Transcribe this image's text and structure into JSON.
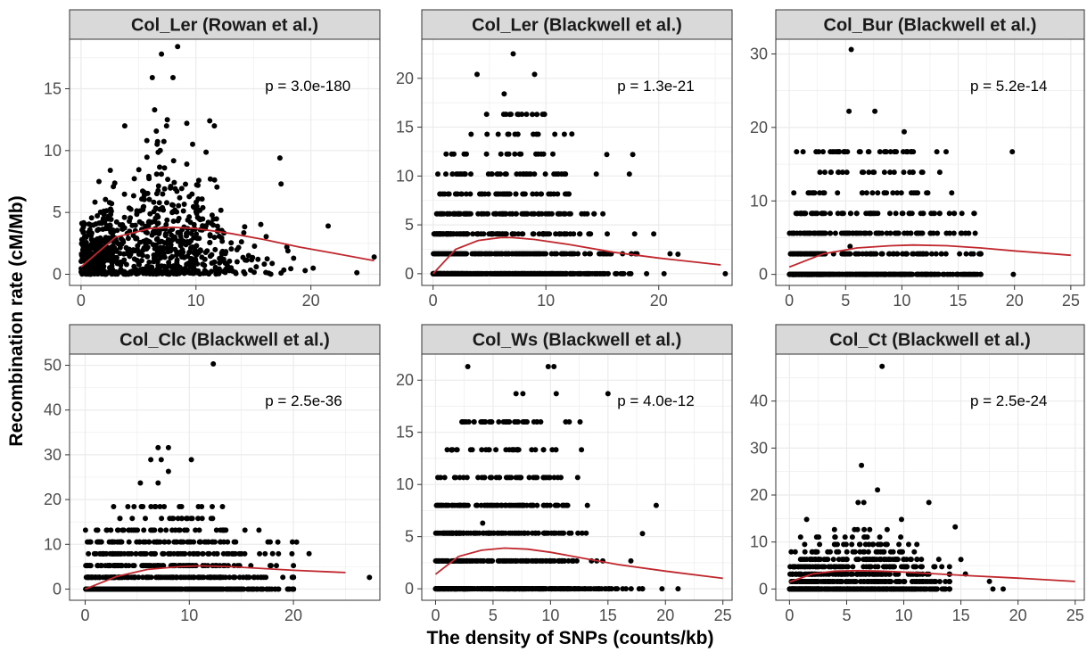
{
  "figure": {
    "ylabel": "Recombination rate (cM/Mb)",
    "xlabel": "The density of SNPs (counts/kb)"
  },
  "colors": {
    "points": "#000000",
    "curve": "#c0272d",
    "strip_fill": "#d9d9d9",
    "grid": "#ebebeb",
    "panel_border": "#333333"
  },
  "chart_data": [
    {
      "type": "scatter",
      "title": "Col_Ler (Rowan et al.)",
      "p_label": "p = 3.0e-180",
      "xlim": [
        -1,
        26
      ],
      "ylim": [
        -0.9,
        19
      ],
      "xticks": [
        0,
        10,
        20
      ],
      "yticks": [
        0,
        5,
        10,
        15
      ],
      "grid": true,
      "mode": "continuous",
      "cluster_x": 7,
      "cluster_y": 3,
      "x_max": 24,
      "n": 900,
      "points": [
        [
          8.4,
          18.4
        ],
        [
          7.0,
          17.8
        ],
        [
          8.0,
          15.9
        ],
        [
          6.2,
          15.9
        ],
        [
          6.4,
          13.3
        ],
        [
          3.8,
          12.0
        ],
        [
          9.2,
          12.2
        ],
        [
          11.2,
          12.4
        ],
        [
          11.6,
          12.0
        ],
        [
          7.5,
          12.5
        ],
        [
          17.3,
          9.4
        ],
        [
          17.4,
          7.3
        ],
        [
          21.5,
          3.9
        ],
        [
          25.5,
          1.4
        ],
        [
          20.2,
          0.5
        ],
        [
          19.5,
          0.3
        ],
        [
          18.5,
          1.3
        ],
        [
          18.0,
          1.9
        ]
      ],
      "curve": {
        "x": [
          0,
          3,
          6,
          8,
          10,
          13,
          16,
          19,
          22,
          25.5
        ],
        "y": [
          0.6,
          3.0,
          3.7,
          3.8,
          3.7,
          3.3,
          2.8,
          2.2,
          1.7,
          1.1
        ]
      }
    },
    {
      "type": "scatter",
      "title": "Col_Ler (Blackwell et al.)",
      "p_label": "p = 1.3e-21",
      "xlim": [
        -1,
        26.5
      ],
      "ylim": [
        -1.2,
        24
      ],
      "xticks": [
        0,
        10,
        20
      ],
      "yticks": [
        0,
        5,
        10,
        15,
        20
      ],
      "grid": true,
      "mode": "discrete",
      "levels": [
        0,
        2.04,
        4.08,
        6.12,
        8.16,
        10.2,
        12.24,
        14.28,
        16.32
      ],
      "cluster_x": 7.5,
      "x_max": 21,
      "n": 1200,
      "points": [
        [
          7.1,
          22.5
        ],
        [
          3.9,
          20.4
        ],
        [
          9.0,
          20.4
        ],
        [
          6.3,
          18.4
        ],
        [
          6.8,
          16.3
        ],
        [
          7.6,
          16.3
        ],
        [
          8.8,
          16.3
        ],
        [
          9.2,
          16.3
        ],
        [
          15.4,
          12.2
        ],
        [
          17.7,
          12.2
        ],
        [
          17.4,
          10.2
        ],
        [
          21.7,
          2.0
        ],
        [
          25.9,
          0.0
        ],
        [
          12.3,
          14.3
        ]
      ],
      "curve": {
        "x": [
          0,
          2,
          4,
          6,
          7,
          9,
          12,
          16,
          20,
          25.5
        ],
        "y": [
          0.0,
          2.5,
          3.4,
          3.7,
          3.7,
          3.5,
          3.0,
          2.2,
          1.6,
          0.9
        ]
      }
    },
    {
      "type": "scatter",
      "title": "Col_Bur (Blackwell et al.)",
      "p_label": "p = 5.2e-14",
      "xlim": [
        -1.2,
        26.2
      ],
      "ylim": [
        -1.5,
        32
      ],
      "xticks": [
        0,
        5,
        10,
        15,
        20,
        25
      ],
      "yticks": [
        0,
        10,
        20,
        30
      ],
      "grid": true,
      "mode": "discrete",
      "levels": [
        0,
        2.8,
        5.6,
        8.3,
        11.1,
        13.9,
        16.7
      ],
      "cluster_x": 8,
      "x_max": 17,
      "n": 800,
      "points": [
        [
          5.5,
          30.6
        ],
        [
          5.3,
          22.2
        ],
        [
          7.6,
          22.2
        ],
        [
          10.2,
          19.4
        ],
        [
          19.8,
          16.7
        ],
        [
          19.9,
          0.0
        ],
        [
          5.4,
          3.8
        ],
        [
          3.0,
          16.7
        ],
        [
          4.2,
          16.7
        ]
      ],
      "curve": {
        "x": [
          0,
          3,
          6,
          9,
          11,
          14,
          17,
          20,
          25
        ],
        "y": [
          1.0,
          2.8,
          3.6,
          3.9,
          4.0,
          3.9,
          3.6,
          3.2,
          2.6
        ]
      }
    },
    {
      "type": "scatter",
      "title": "Col_Clc (Blackwell et al.)",
      "p_label": "p = 2.5e-36",
      "xlim": [
        -1.5,
        28.3
      ],
      "ylim": [
        -2.5,
        52.5
      ],
      "xticks": [
        0,
        10,
        20
      ],
      "yticks": [
        0,
        10,
        20,
        30,
        40,
        50
      ],
      "grid": true,
      "mode": "discrete",
      "levels": [
        0,
        2.63,
        5.26,
        7.89,
        10.53,
        13.16,
        15.79,
        18.42
      ],
      "cluster_x": 9,
      "x_max": 20,
      "n": 1100,
      "points": [
        [
          12.3,
          50.3
        ],
        [
          7.0,
          31.6
        ],
        [
          8.0,
          31.6
        ],
        [
          7.3,
          28.9
        ],
        [
          8.0,
          26.3
        ],
        [
          10.2,
          28.9
        ],
        [
          6.3,
          28.9
        ],
        [
          18.0,
          7.9
        ],
        [
          18.5,
          10.5
        ],
        [
          20.3,
          10.5
        ],
        [
          21.5,
          7.9
        ],
        [
          27.3,
          2.6
        ],
        [
          5.3,
          23.7
        ],
        [
          7.0,
          23.7
        ]
      ],
      "curve": {
        "x": [
          0,
          3,
          6,
          9,
          11,
          14,
          17,
          20,
          25
        ],
        "y": [
          0.0,
          2.8,
          4.4,
          5.0,
          5.2,
          5.0,
          4.6,
          4.2,
          3.7
        ]
      }
    },
    {
      "type": "scatter",
      "title": "Col_Ws (Blackwell et al.)",
      "p_label": "p = 4.0e-12",
      "xlim": [
        -1.2,
        25.8
      ],
      "ylim": [
        -1.1,
        22.5
      ],
      "xticks": [
        0,
        5,
        10,
        15,
        20,
        25
      ],
      "yticks": [
        0,
        5,
        10,
        15,
        20
      ],
      "grid": true,
      "mode": "discrete",
      "levels": [
        0,
        2.67,
        5.33,
        8.0,
        10.67,
        13.33,
        16.0
      ],
      "cluster_x": 7,
      "x_max": 18,
      "n": 1000,
      "points": [
        [
          2.8,
          21.3
        ],
        [
          9.8,
          21.3
        ],
        [
          10.3,
          21.3
        ],
        [
          7.0,
          18.7
        ],
        [
          7.6,
          18.7
        ],
        [
          15.0,
          18.7
        ],
        [
          10.5,
          18.7
        ],
        [
          19.2,
          8.0
        ],
        [
          18.0,
          5.3
        ],
        [
          19.7,
          0.0
        ],
        [
          21.1,
          0.0
        ],
        [
          4.1,
          6.3
        ],
        [
          1.4,
          13.3
        ]
      ],
      "curve": {
        "x": [
          0,
          2,
          4,
          6,
          8,
          10,
          13,
          16,
          20,
          25
        ],
        "y": [
          1.4,
          3.1,
          3.7,
          3.9,
          3.8,
          3.5,
          2.9,
          2.3,
          1.7,
          1.0
        ]
      }
    },
    {
      "type": "scatter",
      "title": "Col_Ct (Blackwell et al.)",
      "p_label": "p = 2.5e-24",
      "xlim": [
        -1.2,
        25.8
      ],
      "ylim": [
        -2.4,
        50
      ],
      "xticks": [
        0,
        5,
        10,
        15,
        20,
        25
      ],
      "yticks": [
        0,
        10,
        20,
        30,
        40
      ],
      "grid": true,
      "mode": "discrete",
      "levels": [
        0,
        1.58,
        3.16,
        4.74,
        6.32,
        7.9,
        9.48,
        11.06,
        12.64
      ],
      "cluster_x": 6.5,
      "x_max": 14,
      "n": 1000,
      "points": [
        [
          8.1,
          47.4
        ],
        [
          6.3,
          26.3
        ],
        [
          7.7,
          21.1
        ],
        [
          6.0,
          18.4
        ],
        [
          6.5,
          18.4
        ],
        [
          12.2,
          18.4
        ],
        [
          1.5,
          14.8
        ],
        [
          9.8,
          14.8
        ],
        [
          14.5,
          13.2
        ],
        [
          17.5,
          1.6
        ],
        [
          17.8,
          0.0
        ],
        [
          18.7,
          0.0
        ],
        [
          15.4,
          3.2
        ],
        [
          15.0,
          6.3
        ]
      ],
      "curve": {
        "x": [
          0,
          2,
          4,
          6,
          8,
          10,
          13,
          16,
          20,
          25
        ],
        "y": [
          1.5,
          3.2,
          3.8,
          3.9,
          3.8,
          3.6,
          3.2,
          2.8,
          2.3,
          1.6
        ]
      }
    }
  ]
}
